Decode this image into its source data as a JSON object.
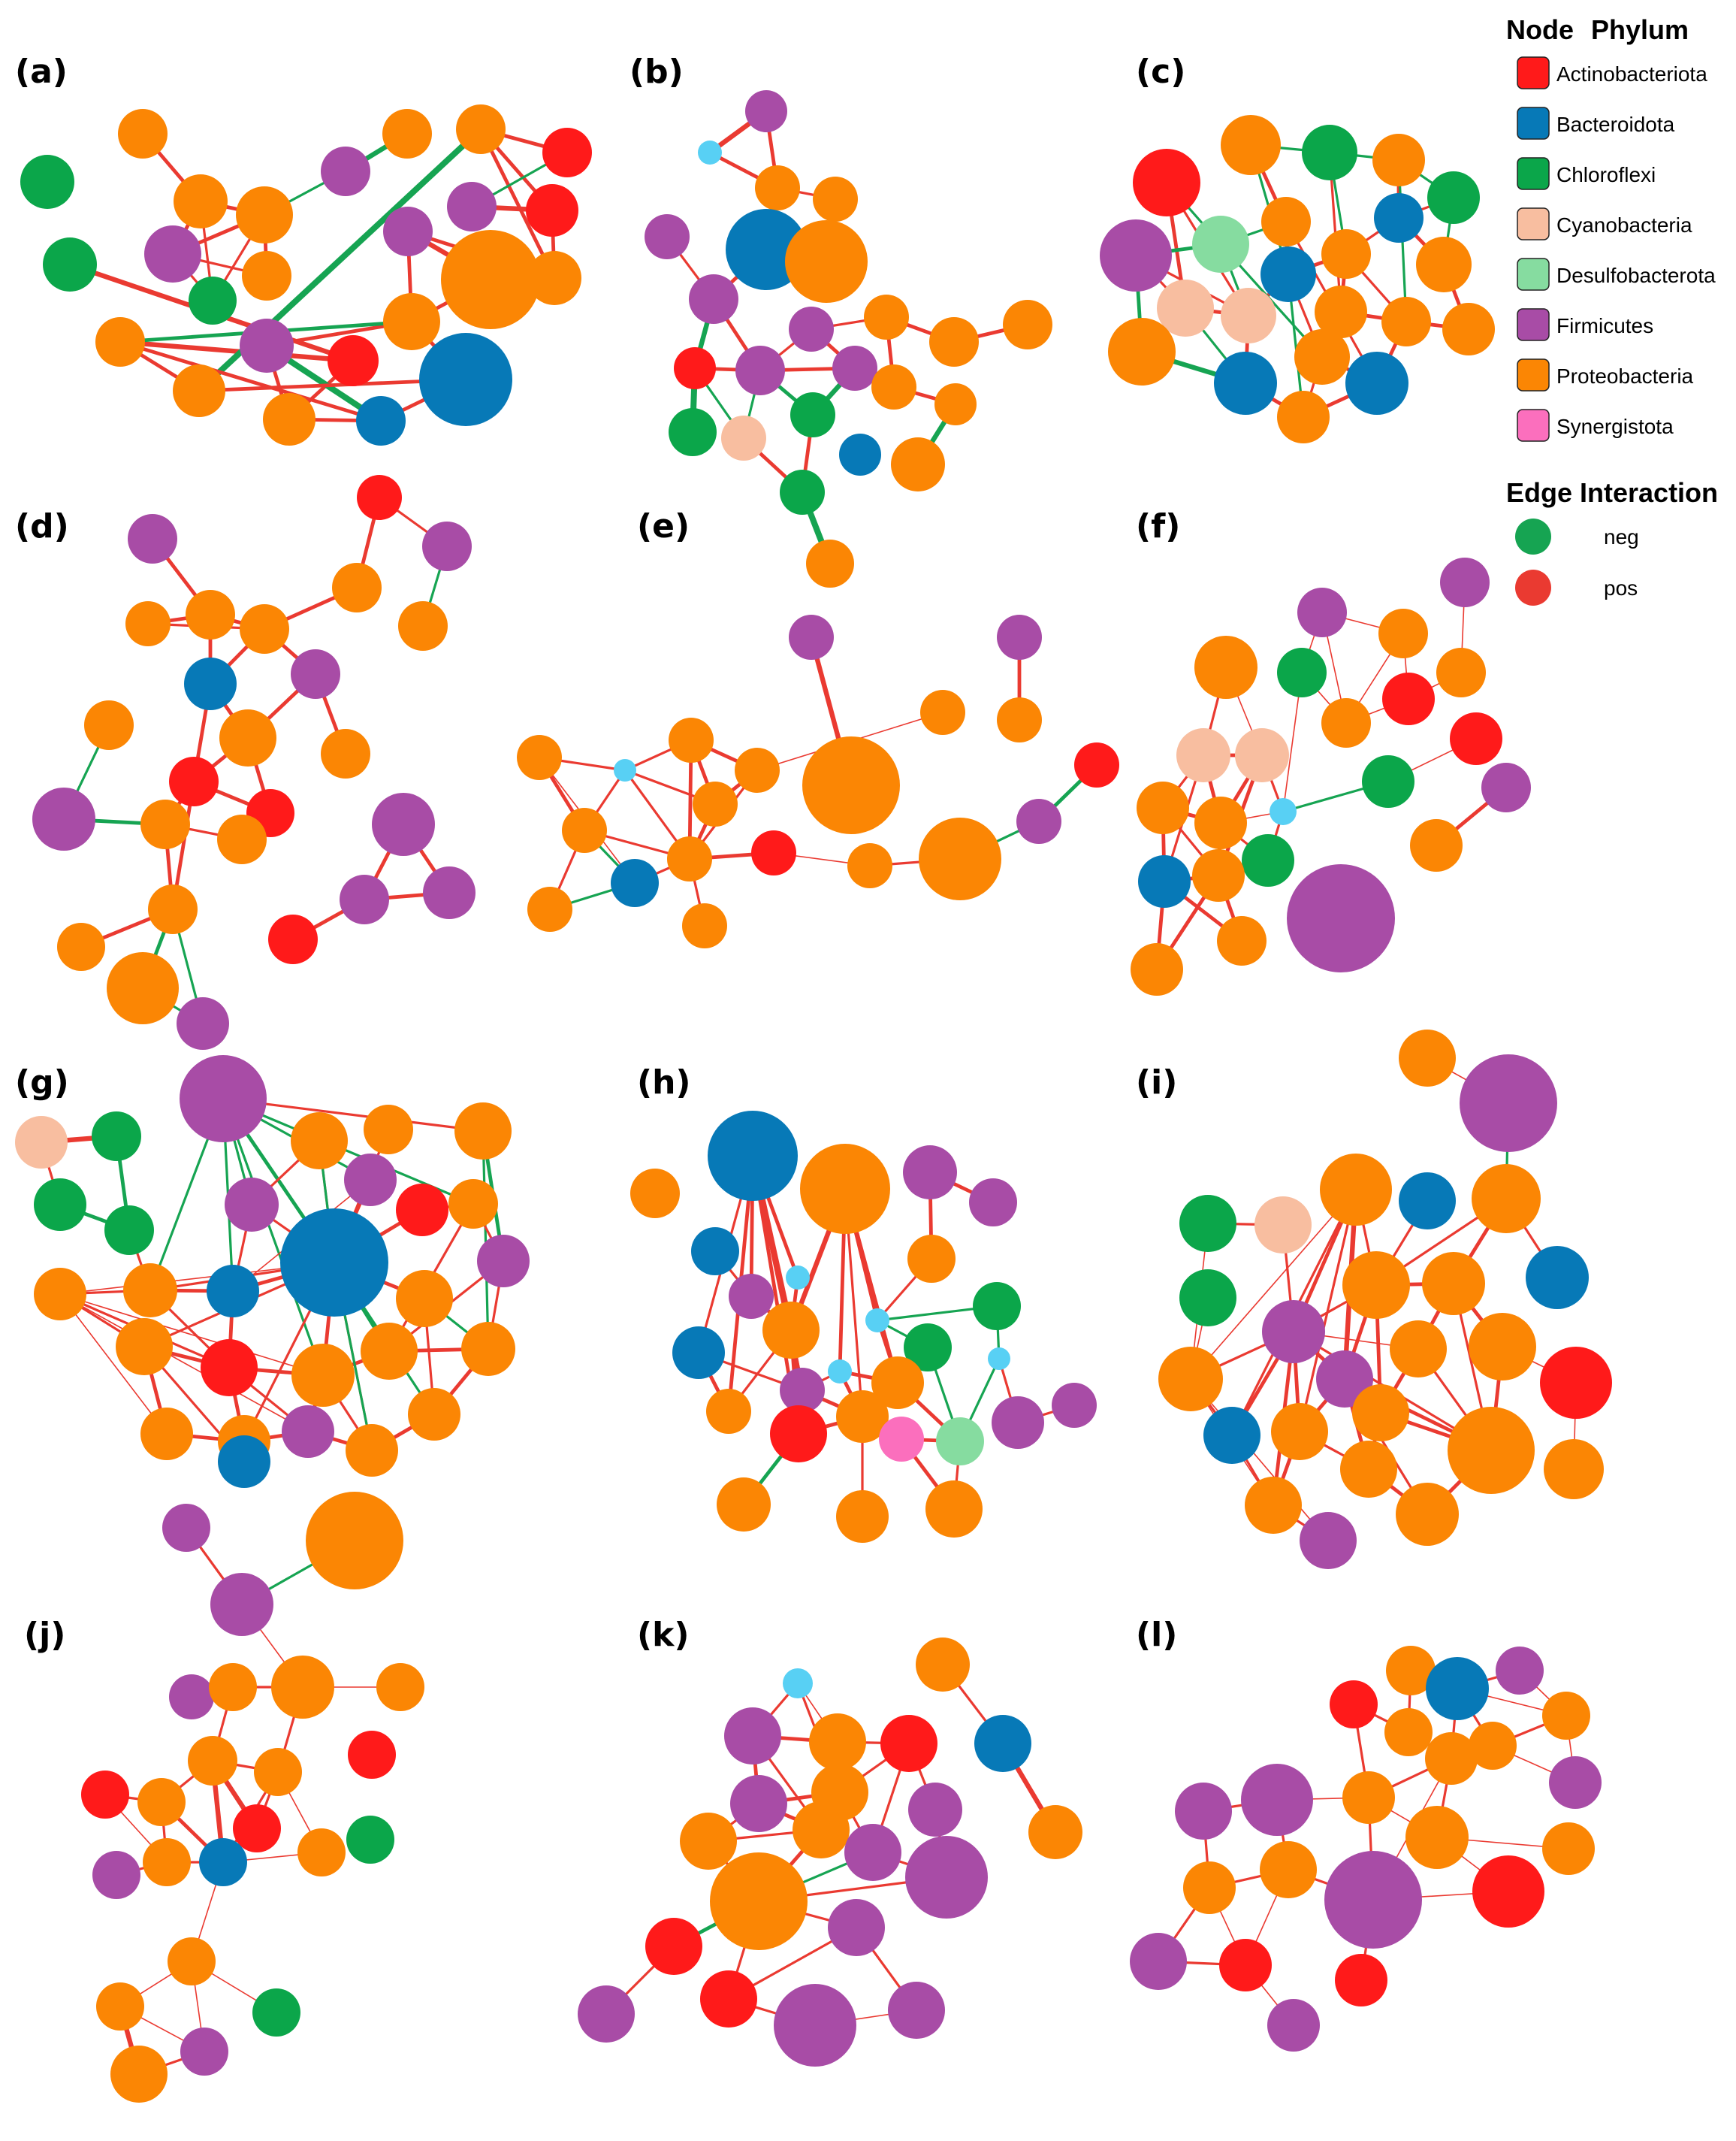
{
  "colors": {
    "Actinobacteriota": "#ff1a1a",
    "Bacteroidota": "#0779b7",
    "Chloroflexi": "#0ba64a",
    "Cyanobacteria": "#f8bea0",
    "Desulfobacterota": "#86dca0",
    "Firmicutes": "#a84ca6",
    "Proteobacteria": "#fb8604",
    "Synergistota": "#fb6fbd",
    "Unclassified": "#58d0f4",
    "neg": "#16a452",
    "pos": "#ea3a31"
  },
  "legend": {
    "node_header": "Node",
    "phylum_header": "Phylum",
    "phyla": [
      {
        "name": "Actinobacteriota",
        "color_key": "Actinobacteriota"
      },
      {
        "name": "Bacteroidota",
        "color_key": "Bacteroidota"
      },
      {
        "name": "Chloroflexi",
        "color_key": "Chloroflexi"
      },
      {
        "name": "Cyanobacteria",
        "color_key": "Cyanobacteria"
      },
      {
        "name": "Desulfobacterota",
        "color_key": "Desulfobacterota"
      },
      {
        "name": "Firmicutes",
        "color_key": "Firmicutes"
      },
      {
        "name": "Proteobacteria",
        "color_key": "Proteobacteria"
      },
      {
        "name": "Synergistota",
        "color_key": "Synergistota"
      }
    ],
    "edge_header": "Edge Interaction",
    "edges": [
      {
        "name": "neg",
        "color_key": "neg"
      },
      {
        "name": "pos",
        "color_key": "pos"
      }
    ]
  },
  "panels": [
    {
      "label": "(a)"
    },
    {
      "label": "(b)"
    },
    {
      "label": "(c)"
    },
    {
      "label": "(d)"
    },
    {
      "label": "(e)"
    },
    {
      "label": "(f)"
    },
    {
      "label": "(g)"
    },
    {
      "label": "(h)"
    },
    {
      "label": "(i)"
    },
    {
      "label": "(j)"
    },
    {
      "label": "(k)"
    },
    {
      "label": "(l)"
    }
  ]
}
